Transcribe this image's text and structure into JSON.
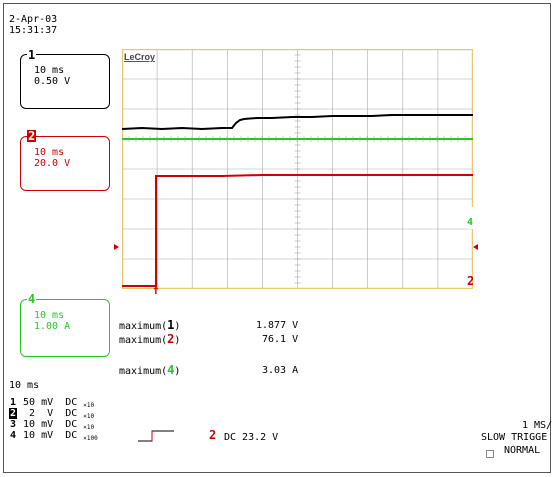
{
  "header": {
    "date": "2-Apr-03",
    "time": "15:31:37"
  },
  "channels": {
    "ch1": {
      "number": "1",
      "timebase": "10 ms",
      "scale": "0.50 V",
      "color": "#000000"
    },
    "ch2": {
      "number": "2",
      "timebase": "10 ms",
      "scale": "20.0 V",
      "color": "#d00000"
    },
    "ch4": {
      "number": "4",
      "timebase": "10 ms",
      "scale": "1.00 A",
      "color": "#22cc22"
    }
  },
  "grid": {
    "brand": "LeCroy",
    "divisions_x": 10,
    "divisions_y": 8,
    "border_color": "#e8c870"
  },
  "measurements": [
    {
      "label": "maximum(",
      "channel": "1",
      "close": ")",
      "value": "1.877 V"
    },
    {
      "label": "maximum(",
      "channel": "2",
      "close": ")",
      "value": "76.1 V"
    },
    {
      "label": "maximum(",
      "channel": "4",
      "close": ")",
      "value": "3.03 A"
    }
  ],
  "timebase": "10 ms",
  "inputs": [
    {
      "ch": "1",
      "scale": "50 mV",
      "coupling": "DC",
      "probe": "10"
    },
    {
      "ch": "2",
      "scale": "2  V",
      "coupling": "DC",
      "probe": "10"
    },
    {
      "ch": "3",
      "scale": "10 mV",
      "coupling": "DC",
      "probe": "10"
    },
    {
      "ch": "4",
      "scale": "10 mV",
      "coupling": "DC",
      "probe": "100"
    }
  ],
  "trigger": {
    "channel": "2",
    "level": "DC 23.2 V",
    "mode": "SLOW TRIGGE",
    "state": "NORMAL"
  },
  "acquisition": {
    "sample_rate": "1 MS/"
  }
}
